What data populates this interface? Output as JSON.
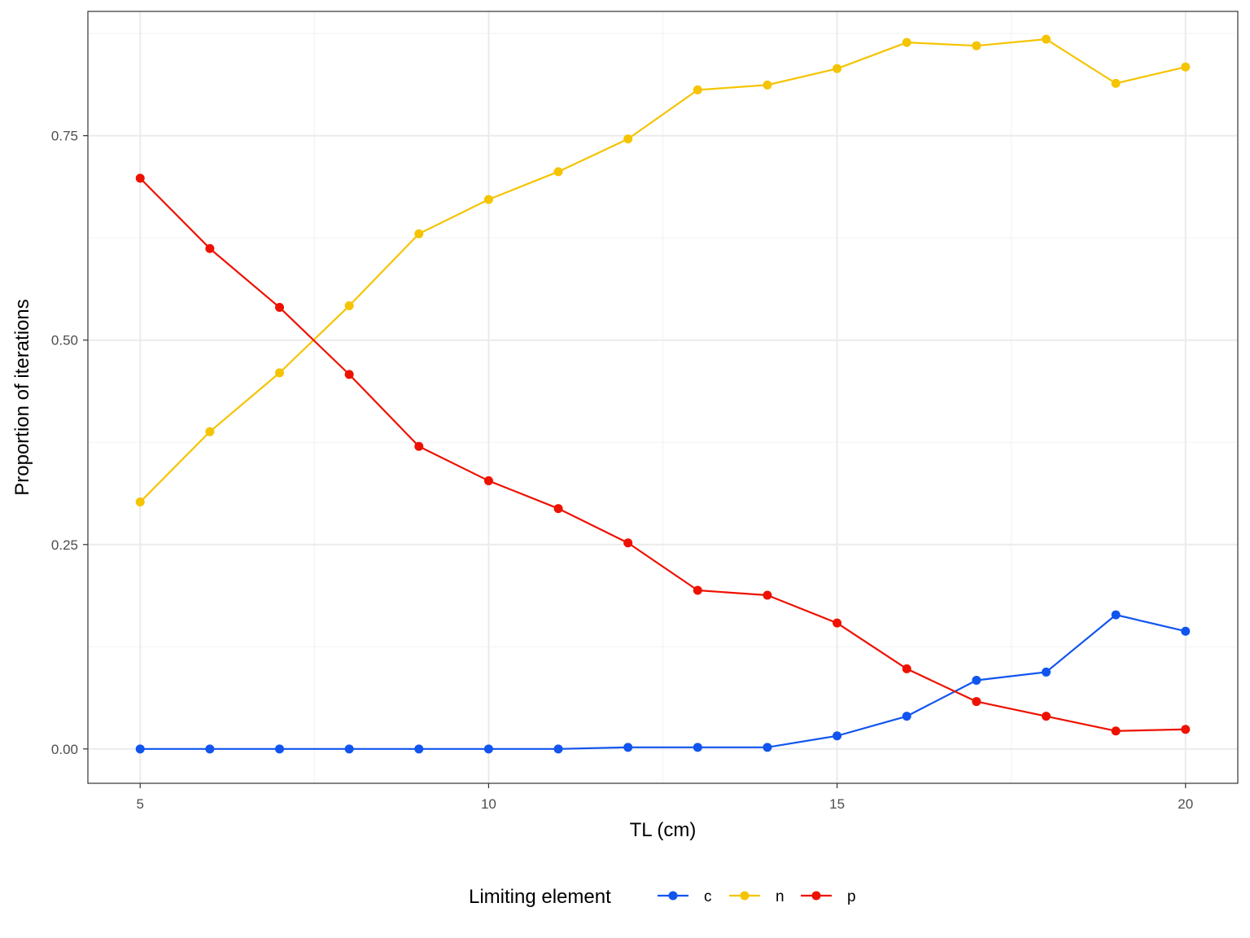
{
  "chart_data": {
    "type": "line",
    "xlabel": "TL (cm)",
    "ylabel": "Proportion of iterations",
    "xlim": [
      4.25,
      20.75
    ],
    "ylim": [
      -0.042,
      0.902
    ],
    "x_ticks": [
      5,
      10,
      15,
      20
    ],
    "x_tick_labels": [
      "5",
      "10",
      "15",
      "20"
    ],
    "x_minor_ticks": [
      7.5,
      12.5,
      17.5
    ],
    "y_ticks": [
      0,
      0.25,
      0.5,
      0.75
    ],
    "y_tick_labels": [
      "0.00",
      "0.25",
      "0.50",
      "0.75"
    ],
    "y_minor_ticks": [
      0.125,
      0.375,
      0.625,
      0.875
    ],
    "grid": true,
    "legend": {
      "title": "Limiting element",
      "position": "bottom"
    },
    "x": [
      5,
      6,
      7,
      8,
      9,
      10,
      11,
      12,
      13,
      14,
      15,
      16,
      17,
      18,
      19,
      20
    ],
    "series": [
      {
        "name": "c",
        "color": "#1155ee",
        "values": [
          0,
          0,
          0,
          0,
          0,
          0,
          0,
          0.002,
          0.002,
          0.002,
          0.016,
          0.04,
          0.084,
          0.094,
          0.164,
          0.144
        ]
      },
      {
        "name": "n",
        "color": "#f5c400",
        "values": [
          0.302,
          0.388,
          0.46,
          0.542,
          0.63,
          0.672,
          0.706,
          0.746,
          0.806,
          0.812,
          0.832,
          0.864,
          0.86,
          0.868,
          0.814,
          0.834
        ]
      },
      {
        "name": "p",
        "color": "#ee1100",
        "values": [
          0.698,
          0.612,
          0.54,
          0.458,
          0.37,
          0.328,
          0.294,
          0.252,
          0.194,
          0.188,
          0.154,
          0.098,
          0.058,
          0.04,
          0.022,
          0.024
        ]
      }
    ]
  }
}
